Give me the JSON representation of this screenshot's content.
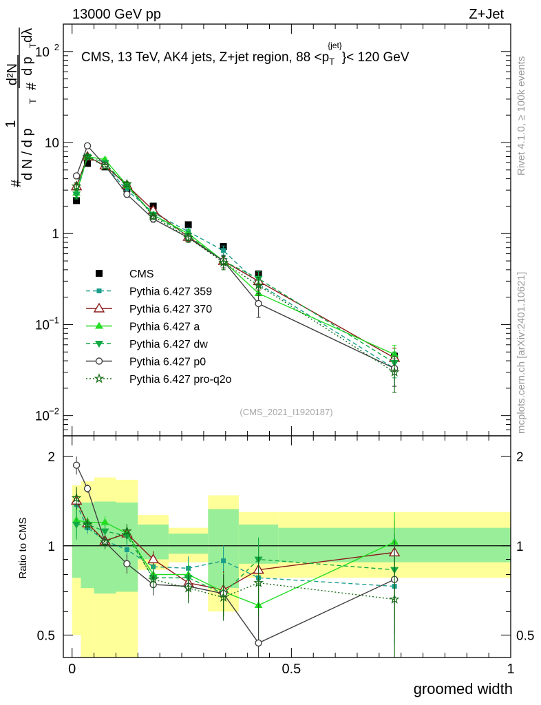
{
  "header": {
    "left": "13000 GeV pp",
    "right": "Z+Jet"
  },
  "side_labels": {
    "rivet": "Rivet 4.1.0, ≥ 100k events",
    "mcplots": "mcplots.cern.ch [arXiv:2401.10621]"
  },
  "chart_data": [
    {
      "type": "line",
      "panel": "main",
      "title": "CMS, 13 TeV, AK4 jets, Z+jet region, 88 <p_T^{jet}< 120 GeV",
      "title_parts": {
        "prefix": "CMS, 13 TeV, AK4 jets, Z+jet region, 88 <p",
        "sup": "{jet}",
        "sub": "T",
        "suffix": "}< 120 GeV"
      },
      "ylabel": "1/dN/dp_T # d²N/dp_T dλ",
      "ylabel_parts": {
        "hash1": "#",
        "one": "1",
        "den": "d N / d p",
        "sub1": "T",
        "hash2": "#",
        "num2": "d²N",
        "den2": "d p",
        "sub2": "T",
        "tail": "dλ"
      },
      "yscale": "log",
      "ylim": [
        0.006,
        200
      ],
      "xlim": [
        -0.02,
        1.0
      ],
      "y_ticks": [
        {
          "v": 0.01,
          "base": "10",
          "exp": "−2"
        },
        {
          "v": 0.1,
          "base": "10",
          "exp": "−1"
        },
        {
          "v": 1,
          "base": "1",
          "exp": ""
        },
        {
          "v": 10,
          "base": "10",
          "exp": ""
        },
        {
          "v": 100,
          "base": "10",
          "exp": "2"
        }
      ],
      "watermark": "(CMS_2021_I1920187)",
      "x": [
        0.01,
        0.035,
        0.075,
        0.125,
        0.185,
        0.265,
        0.345,
        0.425,
        0.735
      ],
      "series": [
        {
          "name": "CMS",
          "color": "#000000",
          "marker": "square",
          "dash": "none",
          "values": [
            2.3,
            5.9,
            5.4,
            3.1,
            2.0,
            1.25,
            0.72,
            0.36,
            0.045
          ],
          "errors": [
            0,
            0,
            0,
            0,
            0,
            0,
            0,
            0,
            0
          ]
        },
        {
          "name": "Pythia 6.427 359",
          "color": "#1a9e8a",
          "marker": "small-square",
          "dash": "dashed",
          "values": [
            3.2,
            6.8,
            5.6,
            3.0,
            1.7,
            1.05,
            0.65,
            0.28,
            0.033
          ],
          "errors": [
            0.3,
            0.3,
            0.3,
            0.2,
            0.12,
            0.1,
            0.08,
            0.06,
            0.012
          ]
        },
        {
          "name": "Pythia 6.427 370",
          "color": "#8b1a1a",
          "marker": "open-triangle",
          "dash": "none",
          "values": [
            3.3,
            7.0,
            5.6,
            3.4,
            1.8,
            0.92,
            0.5,
            0.3,
            0.043
          ],
          "errors": [
            0.3,
            0.3,
            0.3,
            0.2,
            0.12,
            0.1,
            0.08,
            0.06,
            0.012
          ]
        },
        {
          "name": "Pythia 6.427 a",
          "color": "#22dd22",
          "marker": "triangle",
          "dash": "none",
          "values": [
            2.8,
            7.0,
            6.5,
            3.4,
            1.6,
            1.0,
            0.5,
            0.22,
            0.047
          ],
          "errors": [
            0.3,
            0.3,
            0.3,
            0.2,
            0.12,
            0.1,
            0.08,
            0.06,
            0.012
          ]
        },
        {
          "name": "Pythia 6.427 dw",
          "color": "#11aa44",
          "marker": "down-triangle",
          "dash": "dashed",
          "values": [
            2.7,
            7.0,
            6.0,
            3.3,
            1.6,
            0.95,
            0.5,
            0.32,
            0.038
          ],
          "errors": [
            0.3,
            0.3,
            0.3,
            0.2,
            0.12,
            0.1,
            0.08,
            0.06,
            0.012
          ]
        },
        {
          "name": "Pythia 6.427 p0",
          "color": "#404040",
          "marker": "open-circle",
          "dash": "none",
          "values": [
            4.3,
            9.2,
            5.6,
            2.7,
            1.45,
            0.9,
            0.5,
            0.17,
            0.033
          ],
          "errors": [
            0.3,
            0.3,
            0.3,
            0.2,
            0.12,
            0.1,
            0.08,
            0.05,
            0.012
          ]
        },
        {
          "name": "Pythia 6.427 pro-q2o",
          "color": "#156b15",
          "marker": "star",
          "dash": "dotted",
          "values": [
            3.3,
            7.0,
            5.5,
            3.5,
            1.55,
            0.9,
            0.48,
            0.27,
            0.03
          ],
          "errors": [
            0.3,
            0.3,
            0.3,
            0.2,
            0.12,
            0.1,
            0.08,
            0.06,
            0.012
          ]
        }
      ]
    },
    {
      "type": "line",
      "panel": "ratio",
      "ylabel": "Ratio to CMS",
      "xlabel": "groomed width",
      "yscale": "log",
      "ylim": [
        0.42,
        2.35
      ],
      "xlim": [
        -0.02,
        1.0
      ],
      "y_ticks": [
        0.5,
        1,
        2
      ],
      "x_ticks": [
        0,
        0.5,
        1
      ],
      "y_tick_labels": [
        "0.5",
        "1",
        "2"
      ],
      "x_tick_labels": [
        "0",
        "0.5",
        "1"
      ],
      "bins": [
        0,
        0.02,
        0.05,
        0.1,
        0.15,
        0.22,
        0.31,
        0.38,
        0.47,
        1.0
      ],
      "band_outer": [
        [
          0.5,
          1.6
        ],
        [
          0.3,
          1.65
        ],
        [
          0.3,
          1.7
        ],
        [
          0.3,
          1.67
        ],
        [
          0.83,
          1.27
        ],
        [
          0.88,
          1.15
        ],
        [
          0.6,
          1.48
        ],
        [
          0.78,
          1.3
        ],
        [
          0.78,
          1.3
        ]
      ],
      "band_inner": [
        [
          0.78,
          1.4
        ],
        [
          0.72,
          1.4
        ],
        [
          0.69,
          1.41
        ],
        [
          0.7,
          1.4
        ],
        [
          0.9,
          1.18
        ],
        [
          0.94,
          1.1
        ],
        [
          0.72,
          1.33
        ],
        [
          0.87,
          1.18
        ],
        [
          0.88,
          1.15
        ]
      ],
      "x": [
        0.01,
        0.035,
        0.075,
        0.125,
        0.185,
        0.265,
        0.345,
        0.425,
        0.735
      ],
      "series": [
        {
          "name": "Pythia 6.427 359",
          "values": [
            1.38,
            1.15,
            1.04,
            0.97,
            0.85,
            0.84,
            0.89,
            0.78,
            0.73
          ]
        },
        {
          "name": "Pythia 6.427 370",
          "values": [
            1.42,
            1.19,
            1.04,
            1.1,
            0.9,
            0.75,
            0.71,
            0.83,
            0.95
          ]
        },
        {
          "name": "Pythia 6.427 a",
          "values": [
            1.22,
            1.2,
            1.2,
            1.1,
            0.8,
            0.8,
            0.7,
            0.63,
            1.03
          ]
        },
        {
          "name": "Pythia 6.427 dw",
          "values": [
            1.18,
            1.18,
            1.12,
            1.08,
            0.78,
            0.78,
            0.69,
            0.9,
            0.83
          ]
        },
        {
          "name": "Pythia 6.427 p0",
          "values": [
            1.87,
            1.56,
            1.03,
            0.87,
            0.74,
            0.73,
            0.69,
            0.47,
            0.77
          ]
        },
        {
          "name": "Pythia 6.427 pro-q2o",
          "values": [
            1.45,
            1.18,
            1.03,
            1.12,
            0.77,
            0.72,
            0.67,
            0.75,
            0.66
          ]
        }
      ]
    }
  ]
}
